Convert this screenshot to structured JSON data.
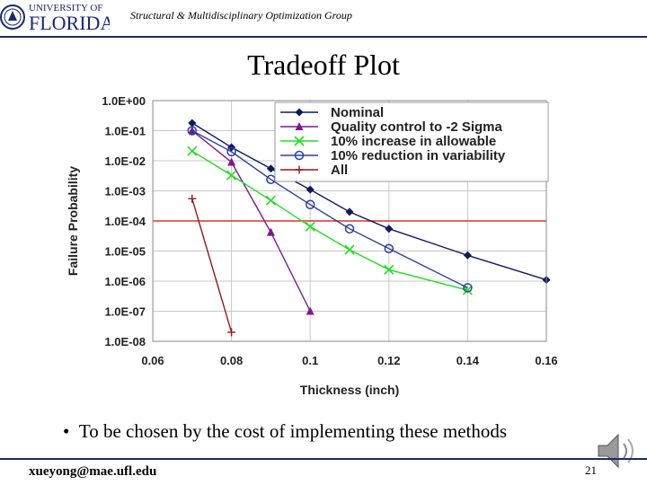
{
  "header": {
    "logo_line1": "UNIVERSITY OF",
    "logo_line2": "FLORIDA",
    "group_title": "Structural & Multidisciplinary Optimization Group"
  },
  "slide": {
    "title": "Tradeoff Plot",
    "bullet": "To be chosen by the cost of implementing these methods"
  },
  "footer": {
    "email": "xueyong@mae.ufl.edu",
    "page_number": "21"
  },
  "colors": {
    "nominal": "#0d1b5e",
    "quality": "#7a1a8c",
    "increase": "#22dd22",
    "reduction": "#2a3f9c",
    "all": "#8b1a1a",
    "threshold": "#d9342b",
    "rule": "#1a2a6c"
  },
  "chart_data": {
    "type": "scatter",
    "xlabel": "Thickness (inch)",
    "ylabel": "Failure Probability",
    "xlim": [
      0.06,
      0.16
    ],
    "x_ticks": [
      "0.06",
      "0.08",
      "0.1",
      "0.12",
      "0.14",
      "0.16"
    ],
    "ylim_log10": [
      -8,
      0
    ],
    "y_ticks": [
      "1.0E+00",
      "1.0E-01",
      "1.0E-02",
      "1.0E-03",
      "1.0E-04",
      "1.0E-05",
      "1.0E-06",
      "1.0E-07",
      "1.0E-08"
    ],
    "grid": true,
    "legend_position": "top-right",
    "reference_line": {
      "y": 0.0001,
      "color": "#d9342b"
    },
    "series": [
      {
        "name": "Nominal",
        "marker": "diamond",
        "color": "#0d1b5e",
        "x": [
          0.07,
          0.08,
          0.09,
          0.1,
          0.11,
          0.12,
          0.14,
          0.16
        ],
        "y": [
          0.18,
          0.028,
          0.0055,
          0.0011,
          0.0002,
          5.5e-05,
          7.2e-06,
          1.1e-06
        ]
      },
      {
        "name": "Quality control to -2 Sigma",
        "marker": "triangle",
        "color": "#7a1a8c",
        "x": [
          0.07,
          0.08,
          0.09,
          0.1
        ],
        "y": [
          0.1,
          0.009,
          4.2e-05,
          1e-07
        ]
      },
      {
        "name": "10% increase in allowable",
        "marker": "x",
        "color": "#22dd22",
        "x": [
          0.07,
          0.08,
          0.09,
          0.1,
          0.11,
          0.12,
          0.14
        ],
        "y": [
          0.021,
          0.0033,
          0.00048,
          6.5e-05,
          1.1e-05,
          2.4e-06,
          5e-07
        ]
      },
      {
        "name": "10% reduction in variability",
        "marker": "circle",
        "color": "#2a3f9c",
        "x": [
          0.07,
          0.08,
          0.09,
          0.1,
          0.11,
          0.12,
          0.14
        ],
        "y": [
          0.1,
          0.02,
          0.0024,
          0.00035,
          5.5e-05,
          1.2e-05,
          6e-07
        ]
      },
      {
        "name": "All",
        "marker": "plus",
        "color": "#8b1a1a",
        "x": [
          0.07,
          0.08
        ],
        "y": [
          0.00055,
          2e-08
        ]
      }
    ]
  }
}
